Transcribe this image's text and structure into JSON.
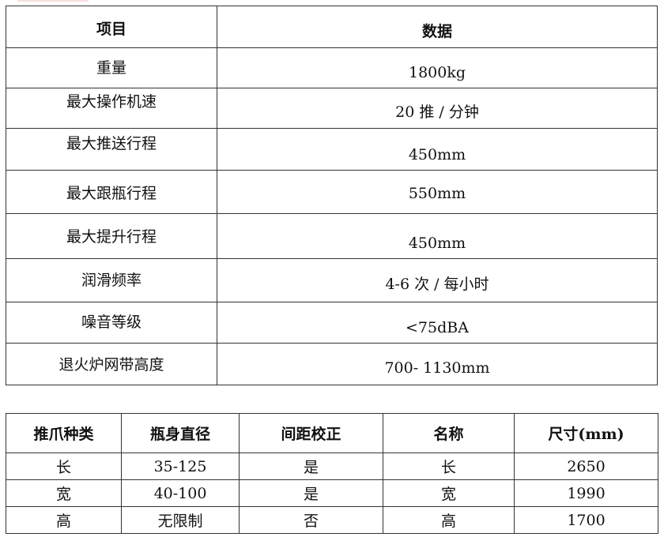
{
  "spec_table": {
    "headers": [
      "项目",
      "数据"
    ],
    "rows": [
      [
        "重量",
        "1800kg"
      ],
      [
        "最大操作机速",
        "20 推 / 分钟"
      ],
      [
        "最大推送行程",
        "450mm"
      ],
      [
        "最大跟瓶行程",
        "550mm"
      ],
      [
        "最大提升行程",
        "450mm"
      ],
      [
        "润滑频率",
        "4-6 次 / 每小时"
      ],
      [
        "噪音等级",
        "<75dBA"
      ],
      [
        "退火炉网带高度",
        "700- 1130mm"
      ]
    ]
  },
  "claw_table": {
    "headers": [
      "推爪种类",
      "瓶身直径",
      "间距校正",
      "名称",
      "尺寸(mm)"
    ],
    "rows": [
      [
        "长",
        "35-125",
        "是",
        "长",
        "2650"
      ],
      [
        "宽",
        "40-100",
        "是",
        "宽",
        "1990"
      ],
      [
        "高",
        "无限制",
        "否",
        "高",
        "1700"
      ]
    ]
  }
}
